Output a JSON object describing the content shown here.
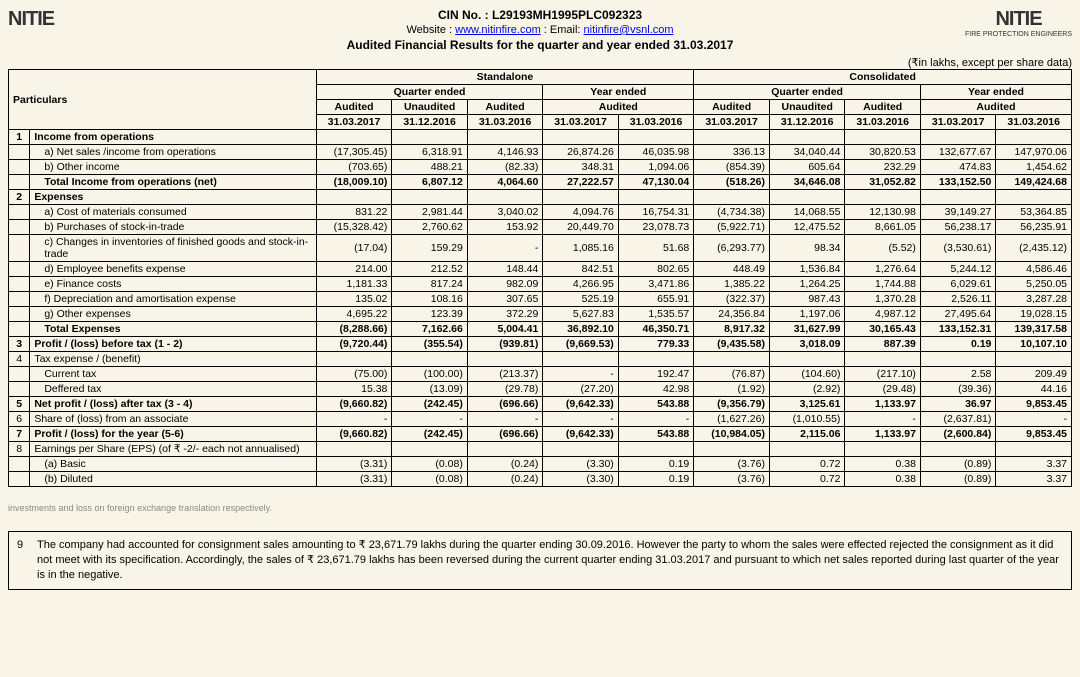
{
  "header": {
    "logo_text": "NITIE",
    "cin": "CIN No. : L29193MH1995PLC092323",
    "website_label": "Website : ",
    "website_url": "www.nitinfire.com",
    "email_label": " : Email: ",
    "email": "nitinfire@vsnl.com",
    "title": "Audited Financial Results for the quarter and year ended 31.03.2017",
    "unit_note": "(₹in lakhs, except per share data)"
  },
  "columns": {
    "particulars": "Particulars",
    "standalone": "Standalone",
    "consolidated": "Consolidated",
    "quarter_ended": "Quarter ended",
    "year_ended": "Year ended",
    "audited": "Audited",
    "unaudited": "Unaudited",
    "d1": "31.03.2017",
    "d2": "31.12.2016",
    "d3": "31.03.2016",
    "d4": "31.03.2017",
    "d5": "31.03.2016",
    "d6": "31.03.2017",
    "d7": "31.12.2016",
    "d8": "31.03.2016",
    "d9": "31.03.2017",
    "d10": "31.03.2016"
  },
  "rows": [
    {
      "n": "1",
      "label": "Income from operations",
      "bold": true,
      "v": [
        "",
        "",
        "",
        "",
        "",
        "",
        "",
        "",
        "",
        ""
      ]
    },
    {
      "label": "a) Net sales /income from operations",
      "indent": 1,
      "v": [
        "(17,305.45)",
        "6,318.91",
        "4,146.93",
        "26,874.26",
        "46,035.98",
        "336.13",
        "34,040.44",
        "30,820.53",
        "132,677.67",
        "147,970.06"
      ]
    },
    {
      "label": "b) Other income",
      "indent": 1,
      "v": [
        "(703.65)",
        "488.21",
        "(82.33)",
        "348.31",
        "1,094.06",
        "(854.39)",
        "605.64",
        "232.29",
        "474.83",
        "1,454.62"
      ]
    },
    {
      "label": "Total Income from operations (net)",
      "indent": 1,
      "bold": true,
      "v": [
        "(18,009.10)",
        "6,807.12",
        "4,064.60",
        "27,222.57",
        "47,130.04",
        "(518.26)",
        "34,646.08",
        "31,052.82",
        "133,152.50",
        "149,424.68"
      ]
    },
    {
      "n": "2",
      "label": "Expenses",
      "bold": true,
      "v": [
        "",
        "",
        "",
        "",
        "",
        "",
        "",
        "",
        "",
        ""
      ]
    },
    {
      "label": "a) Cost of materials consumed",
      "indent": 1,
      "v": [
        "831.22",
        "2,981.44",
        "3,040.02",
        "4,094.76",
        "16,754.31",
        "(4,734.38)",
        "14,068.55",
        "12,130.98",
        "39,149.27",
        "53,364.85"
      ]
    },
    {
      "label": "b) Purchases of stock-in-trade",
      "indent": 1,
      "v": [
        "(15,328.42)",
        "2,760.62",
        "153.92",
        "20,449.70",
        "23,078.73",
        "(5,922.71)",
        "12,475.52",
        "8,661.05",
        "56,238.17",
        "56,235.91"
      ]
    },
    {
      "label": "c) Changes in inventories of finished goods and stock-in-trade",
      "indent": 1,
      "v": [
        "(17.04)",
        "159.29",
        "-",
        "1,085.16",
        "51.68",
        "(6,293.77)",
        "98.34",
        "(5.52)",
        "(3,530.61)",
        "(2,435.12)"
      ]
    },
    {
      "label": "d) Employee benefits expense",
      "indent": 1,
      "v": [
        "214.00",
        "212.52",
        "148.44",
        "842.51",
        "802.65",
        "448.49",
        "1,536.84",
        "1,276.64",
        "5,244.12",
        "4,586.46"
      ]
    },
    {
      "label": "e) Finance costs",
      "indent": 1,
      "v": [
        "1,181.33",
        "817.24",
        "982.09",
        "4,266.95",
        "3,471.86",
        "1,385.22",
        "1,264.25",
        "1,744.88",
        "6,029.61",
        "5,250.05"
      ]
    },
    {
      "label": "f) Depreciation and amortisation expense",
      "indent": 1,
      "v": [
        "135.02",
        "108.16",
        "307.65",
        "525.19",
        "655.91",
        "(322.37)",
        "987.43",
        "1,370.28",
        "2,526.11",
        "3,287.28"
      ]
    },
    {
      "label": "g)  Other expenses",
      "indent": 1,
      "v": [
        "4,695.22",
        "123.39",
        "372.29",
        "5,627.83",
        "1,535.57",
        "24,356.84",
        "1,197.06",
        "4,987.12",
        "27,495.64",
        "19,028.15"
      ]
    },
    {
      "label": "Total Expenses",
      "indent": 1,
      "bold": true,
      "v": [
        "(8,288.66)",
        "7,162.66",
        "5,004.41",
        "36,892.10",
        "46,350.71",
        "8,917.32",
        "31,627.99",
        "30,165.43",
        "133,152.31",
        "139,317.58"
      ]
    },
    {
      "n": "3",
      "label": "Profit / (loss) before tax (1 - 2)",
      "bold": true,
      "v": [
        "(9,720.44)",
        "(355.54)",
        "(939.81)",
        "(9,669.53)",
        "779.33",
        "(9,435.58)",
        "3,018.09",
        "887.39",
        "0.19",
        "10,107.10"
      ]
    },
    {
      "n": "4",
      "label": "Tax expense / (benefit)",
      "v": [
        "",
        "",
        "",
        "",
        "",
        "",
        "",
        "",
        "",
        ""
      ]
    },
    {
      "label": "Current tax",
      "indent": 1,
      "v": [
        "(75.00)",
        "(100.00)",
        "(213.37)",
        "-",
        "192.47",
        "(76.87)",
        "(104.60)",
        "(217.10)",
        "2.58",
        "209.49"
      ]
    },
    {
      "label": "Deffered tax",
      "indent": 1,
      "v": [
        "15.38",
        "(13.09)",
        "(29.78)",
        "(27.20)",
        "42.98",
        "(1.92)",
        "(2.92)",
        "(29.48)",
        "(39.36)",
        "44.16"
      ]
    },
    {
      "n": "5",
      "label": "Net profit / (loss) after tax (3 - 4)",
      "bold": true,
      "v": [
        "(9,660.82)",
        "(242.45)",
        "(696.66)",
        "(9,642.33)",
        "543.88",
        "(9,356.79)",
        "3,125.61",
        "1,133.97",
        "36.97",
        "9,853.45"
      ]
    },
    {
      "n": "6",
      "label": "Share of (loss) from an associate",
      "v": [
        "-",
        "-",
        "-",
        "-",
        "-",
        "(1,627.26)",
        "(1,010.55)",
        "-",
        "(2,637.81)",
        "-"
      ]
    },
    {
      "n": "7",
      "label": "Profit / (loss) for the year (5-6)",
      "bold": true,
      "v": [
        "(9,660.82)",
        "(242.45)",
        "(696.66)",
        "(9,642.33)",
        "543.88",
        "(10,984.05)",
        "2,115.06",
        "1,133.97",
        "(2,600.84)",
        "9,853.45"
      ]
    },
    {
      "n": "8",
      "label": "Earnings per Share (EPS) (of ₹ -2/- each not annualised)",
      "v": [
        "",
        "",
        "",
        "",
        "",
        "",
        "",
        "",
        "",
        ""
      ]
    },
    {
      "label": "(a) Basic",
      "indent": 1,
      "v": [
        "(3.31)",
        "(0.08)",
        "(0.24)",
        "(3.30)",
        "0.19",
        "(3.76)",
        "0.72",
        "0.38",
        "(0.89)",
        "3.37"
      ]
    },
    {
      "label": "(b) Diluted",
      "indent": 1,
      "v": [
        "(3.31)",
        "(0.08)",
        "(0.24)",
        "(3.30)",
        "0.19",
        "(3.76)",
        "0.72",
        "0.38",
        "(0.89)",
        "3.37"
      ]
    }
  ],
  "note": {
    "num": "9",
    "text": "The company had accounted for consignment sales amounting to ₹ 23,671.79 lakhs during the quarter ending 30.09.2016. However the party to whom the sales were effected rejected the consignment as it did not meet with its specification. Accordingly, the sales of ₹ 23,671.79 lakhs has been reversed during the current quarter ending 31.03.2017 and pursuant to which net sales reported during last quarter of the year is in the negative."
  }
}
